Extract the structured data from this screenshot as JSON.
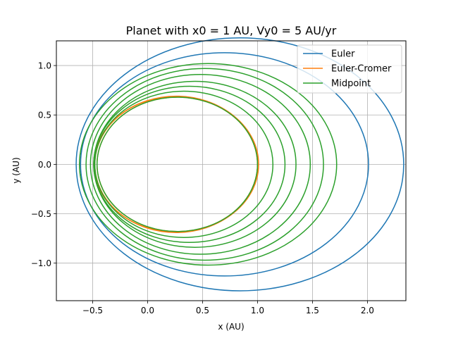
{
  "chart_data": {
    "type": "line",
    "title": "Planet with x0 = 1 AU, Vy0 = 5 AU/yr",
    "xlabel": "x (AU)",
    "ylabel": "y (AU)",
    "xlim": [
      -0.83,
      2.35
    ],
    "ylim": [
      -1.38,
      1.25
    ],
    "xticks": [
      -0.5,
      0.0,
      0.5,
      1.0,
      1.5,
      2.0
    ],
    "xtick_labels": [
      "−0.5",
      "0.0",
      "0.5",
      "1.0",
      "1.5",
      "2.0"
    ],
    "yticks": [
      -1.0,
      -0.5,
      0.0,
      0.5,
      1.0
    ],
    "ytick_labels": [
      "−1.0",
      "−0.5",
      "0.0",
      "0.5",
      "1.0"
    ],
    "grid": true,
    "legend_position": "top-right",
    "series": [
      {
        "name": "Euler",
        "color": "#1f77b4",
        "orbits": [
          {
            "cx": 0.84,
            "a": 1.49,
            "b": 1.28
          },
          {
            "cx": 0.7,
            "a": 1.31,
            "b": 1.13
          }
        ]
      },
      {
        "name": "Euler-Cromer",
        "color": "#ff7f0e",
        "orbits": [
          {
            "cx": 0.26,
            "a": 0.74,
            "b": 0.69
          },
          {
            "cx": 0.27,
            "a": 0.73,
            "b": 0.68
          },
          {
            "cx": 0.26,
            "a": 0.75,
            "b": 0.685
          }
        ]
      },
      {
        "name": "Midpoint",
        "color": "#2ca02c",
        "orbits": [
          {
            "cx": 0.27,
            "a": 0.73,
            "b": 0.68
          },
          {
            "cx": 0.33,
            "a": 0.81,
            "b": 0.74
          },
          {
            "cx": 0.38,
            "a": 0.87,
            "b": 0.79
          },
          {
            "cx": 0.43,
            "a": 0.92,
            "b": 0.84
          },
          {
            "cx": 0.48,
            "a": 1.0,
            "b": 0.91
          },
          {
            "cx": 0.52,
            "a": 1.08,
            "b": 0.97
          },
          {
            "cx": 0.55,
            "a": 1.17,
            "b": 1.02
          }
        ]
      }
    ]
  }
}
